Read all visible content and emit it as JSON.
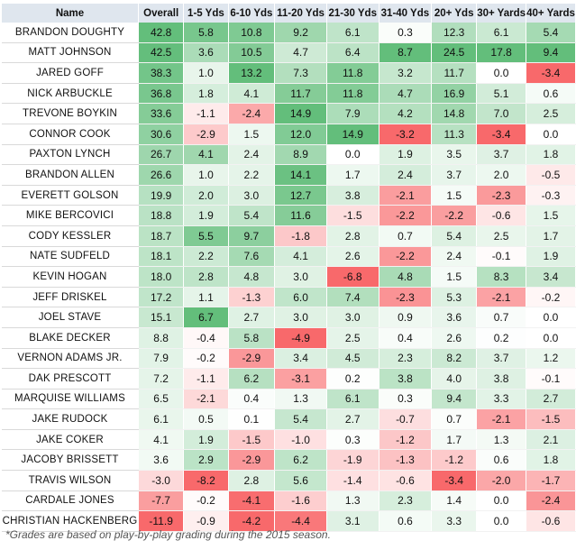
{
  "chart_data": {
    "type": "table",
    "columns": [
      "Name",
      "Overall",
      "1-5 Yds",
      "6-10 Yds",
      "11-20 Yds",
      "21-30 Yds",
      "31-40 Yds",
      "20+ Yds",
      "30+ Yards",
      "40+ Yards"
    ],
    "rows": [
      {
        "name": "BRANDON DOUGHTY",
        "values": [
          42.8,
          5.8,
          10.8,
          9.2,
          6.1,
          0.3,
          12.3,
          6.1,
          5.4
        ]
      },
      {
        "name": "MATT JOHNSON",
        "values": [
          42.5,
          3.6,
          10.5,
          4.7,
          6.4,
          8.7,
          24.5,
          17.8,
          9.4
        ]
      },
      {
        "name": "JARED GOFF",
        "values": [
          38.3,
          1.0,
          13.2,
          7.3,
          11.8,
          3.2,
          11.7,
          0.0,
          -3.4
        ]
      },
      {
        "name": "NICK ARBUCKLE",
        "values": [
          36.8,
          1.8,
          4.1,
          11.7,
          11.8,
          4.7,
          16.9,
          5.1,
          0.6
        ]
      },
      {
        "name": "TREVONE BOYKIN",
        "values": [
          33.6,
          -1.1,
          -2.4,
          14.9,
          7.9,
          4.2,
          14.8,
          7.0,
          2.5
        ]
      },
      {
        "name": "CONNOR COOK",
        "values": [
          30.6,
          -2.9,
          1.5,
          12.0,
          14.9,
          -3.2,
          11.3,
          -3.4,
          0.0
        ]
      },
      {
        "name": "PAXTON LYNCH",
        "values": [
          26.7,
          4.1,
          2.4,
          8.9,
          0.0,
          1.9,
          3.5,
          3.7,
          1.8
        ]
      },
      {
        "name": "BRANDON ALLEN",
        "values": [
          26.6,
          1.0,
          2.2,
          14.1,
          1.7,
          2.4,
          3.7,
          2.0,
          -0.5
        ]
      },
      {
        "name": "EVERETT GOLSON",
        "values": [
          19.9,
          2.0,
          3.0,
          12.7,
          3.8,
          -2.1,
          1.5,
          -2.3,
          -0.3
        ]
      },
      {
        "name": "MIKE BERCOVICI",
        "values": [
          18.8,
          1.9,
          5.4,
          11.6,
          -1.5,
          -2.2,
          -2.2,
          -0.6,
          1.5
        ]
      },
      {
        "name": "CODY KESSLER",
        "values": [
          18.7,
          5.5,
          9.7,
          -1.8,
          2.8,
          0.7,
          5.4,
          2.5,
          1.7
        ]
      },
      {
        "name": "NATE SUDFELD",
        "values": [
          18.1,
          2.2,
          7.6,
          4.1,
          2.6,
          -2.2,
          2.4,
          -0.1,
          1.9
        ]
      },
      {
        "name": "KEVIN HOGAN",
        "values": [
          18.0,
          2.8,
          4.8,
          3.0,
          -6.8,
          4.8,
          1.5,
          8.3,
          3.4
        ]
      },
      {
        "name": "JEFF DRISKEL",
        "values": [
          17.2,
          1.1,
          -1.3,
          6.0,
          7.4,
          -2.3,
          5.3,
          -2.1,
          -0.2
        ]
      },
      {
        "name": "JOEL STAVE",
        "values": [
          15.1,
          6.7,
          2.7,
          3.0,
          3.0,
          0.9,
          3.6,
          0.7,
          0.0
        ]
      },
      {
        "name": "BLAKE DECKER",
        "values": [
          8.8,
          -0.4,
          5.8,
          -4.9,
          2.5,
          0.4,
          2.6,
          0.2,
          0.0
        ]
      },
      {
        "name": "VERNON ADAMS JR.",
        "values": [
          7.9,
          -0.2,
          -2.9,
          3.4,
          4.5,
          2.3,
          8.2,
          3.7,
          1.2
        ]
      },
      {
        "name": "DAK PRESCOTT",
        "values": [
          7.2,
          -1.1,
          6.2,
          -3.1,
          0.2,
          3.8,
          4.0,
          3.8,
          -0.1
        ]
      },
      {
        "name": "MARQUISE WILLIAMS",
        "values": [
          6.5,
          -2.1,
          0.4,
          1.3,
          6.1,
          0.3,
          9.4,
          3.3,
          2.7
        ]
      },
      {
        "name": "JAKE RUDOCK",
        "values": [
          6.1,
          0.5,
          0.1,
          5.4,
          2.7,
          -0.7,
          0.7,
          -2.1,
          -1.5
        ]
      },
      {
        "name": "JAKE COKER",
        "values": [
          4.1,
          1.9,
          -1.5,
          -1.0,
          0.3,
          -1.2,
          1.7,
          1.3,
          2.1
        ]
      },
      {
        "name": "JACOBY BRISSETT",
        "values": [
          3.6,
          2.9,
          -2.9,
          6.2,
          -1.9,
          -1.3,
          -1.2,
          0.6,
          1.8
        ]
      },
      {
        "name": "TRAVIS WILSON",
        "values": [
          -3.0,
          -8.2,
          2.8,
          5.6,
          -1.4,
          -0.6,
          -3.4,
          -2.0,
          -1.7
        ]
      },
      {
        "name": "CARDALE JONES",
        "values": [
          -7.7,
          -0.2,
          -4.1,
          -1.6,
          1.3,
          2.3,
          1.4,
          0.0,
          -2.4
        ]
      },
      {
        "name": "CHRISTIAN HACKENBERG",
        "values": [
          -11.9,
          -0.9,
          -4.2,
          -4.4,
          3.1,
          0.6,
          3.3,
          0.0,
          -0.6
        ]
      }
    ],
    "color_scale": {
      "negative": "#f8696b",
      "neutral": "#ffffff",
      "positive": "#63be7b"
    }
  },
  "footnote": "*Grades are based on play-by-play grading during the 2015 season."
}
